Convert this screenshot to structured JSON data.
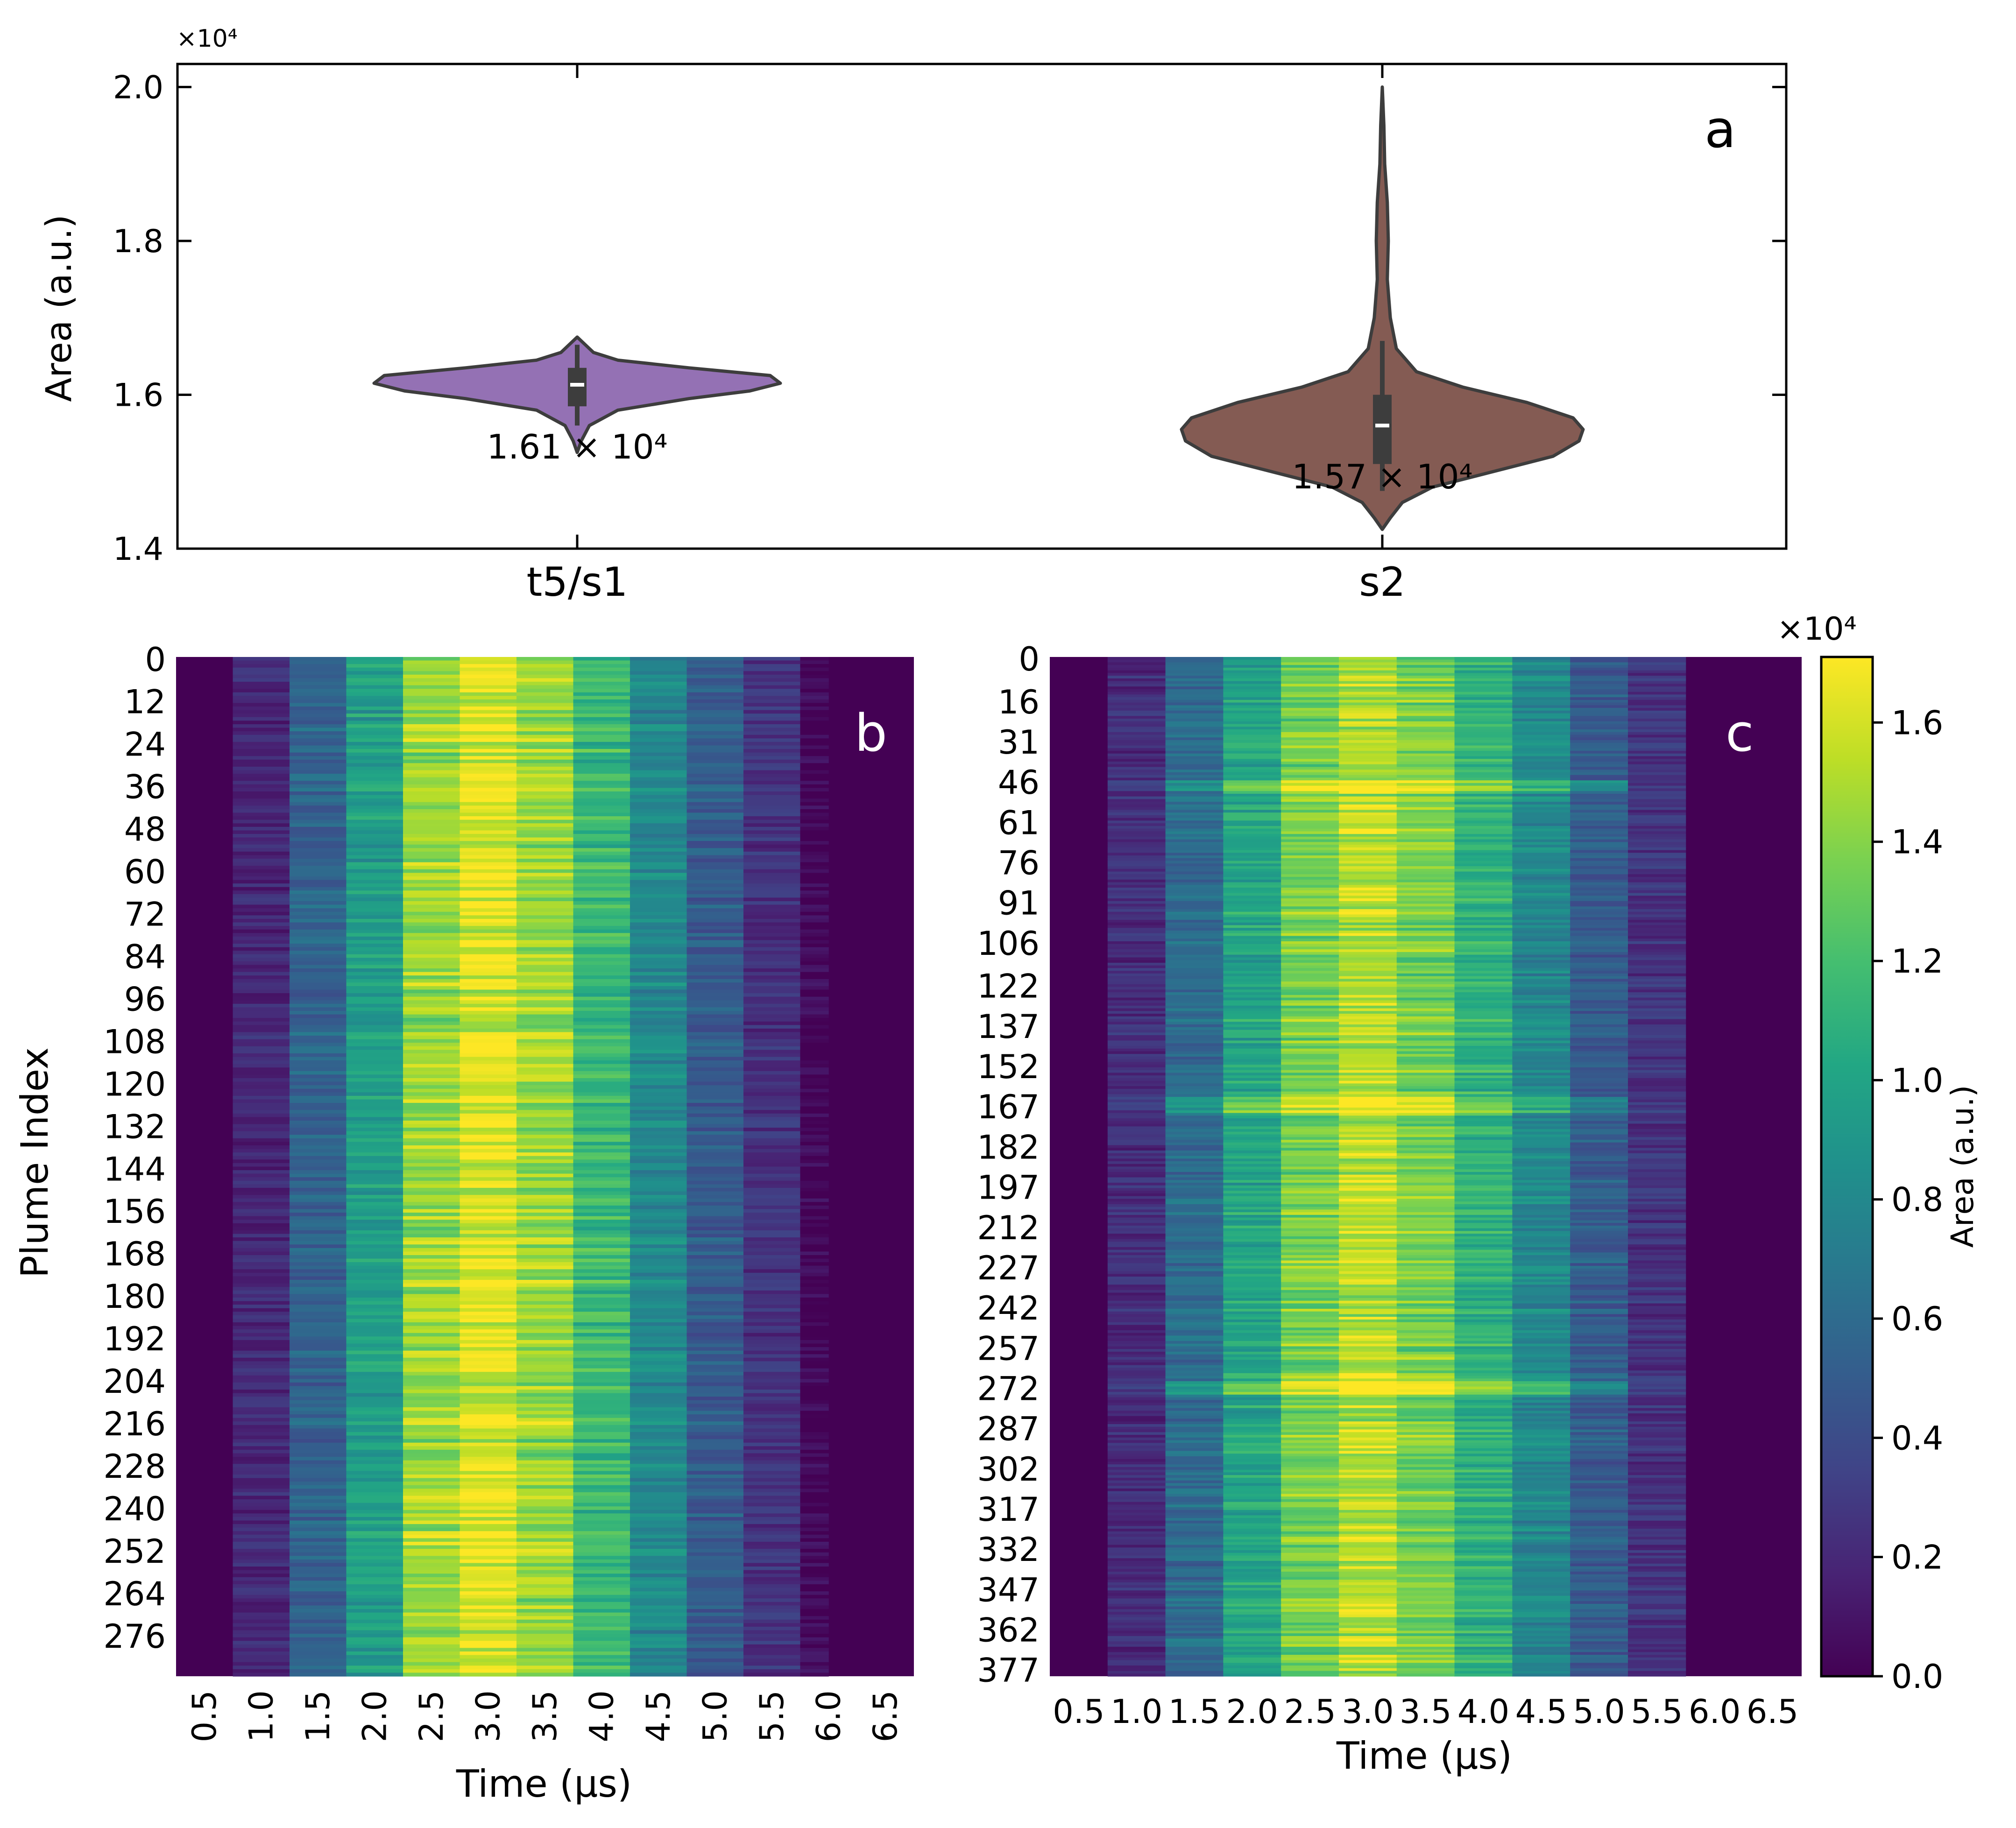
{
  "chart_data": [
    {
      "panel": "a",
      "type": "violin",
      "panel_label": "a",
      "ylabel": "Area (a.u.)",
      "y_scale_label": "×10⁴",
      "ylim": [
        1.4,
        2.03
      ],
      "y_ticks": [
        "1.4",
        "1.6",
        "1.8",
        "2.0"
      ],
      "y_tick_values": [
        1.4,
        1.6,
        1.8,
        2.0
      ],
      "categories": [
        "t5/s1",
        "s2"
      ],
      "colors": [
        "#9471b4",
        "#845b53"
      ],
      "violins": [
        {
          "name": "t5/s1",
          "range": [
            1.525,
            1.675
          ],
          "median": 1.613,
          "q1": 1.585,
          "q3": 1.635,
          "whisker_low": 1.56,
          "whisker_high": 1.665,
          "annotation": "1.61 × 10⁴",
          "density": [
            [
              1.525,
              0.0
            ],
            [
              1.54,
              0.02
            ],
            [
              1.56,
              0.06
            ],
            [
              1.58,
              0.2
            ],
            [
              1.595,
              0.55
            ],
            [
              1.605,
              0.85
            ],
            [
              1.615,
              1.0
            ],
            [
              1.625,
              0.95
            ],
            [
              1.635,
              0.55
            ],
            [
              1.645,
              0.2
            ],
            [
              1.655,
              0.08
            ],
            [
              1.665,
              0.04
            ],
            [
              1.675,
              0.0
            ]
          ]
        },
        {
          "name": "s2",
          "range": [
            1.425,
            2.0
          ],
          "median": 1.56,
          "q1": 1.51,
          "q3": 1.6,
          "whisker_low": 1.475,
          "whisker_high": 1.67,
          "annotation": "1.57 × 10⁴",
          "density": [
            [
              1.425,
              0.0
            ],
            [
              1.44,
              0.04
            ],
            [
              1.46,
              0.1
            ],
            [
              1.48,
              0.25
            ],
            [
              1.5,
              0.55
            ],
            [
              1.52,
              0.85
            ],
            [
              1.54,
              0.98
            ],
            [
              1.555,
              1.0
            ],
            [
              1.57,
              0.95
            ],
            [
              1.59,
              0.72
            ],
            [
              1.61,
              0.4
            ],
            [
              1.63,
              0.17
            ],
            [
              1.66,
              0.07
            ],
            [
              1.7,
              0.04
            ],
            [
              1.75,
              0.025
            ],
            [
              1.8,
              0.03
            ],
            [
              1.85,
              0.025
            ],
            [
              1.9,
              0.012
            ],
            [
              1.95,
              0.008
            ],
            [
              2.0,
              0.0
            ]
          ]
        }
      ]
    },
    {
      "panel": "b",
      "type": "heatmap",
      "panel_label": "b",
      "ylabel": "Plume Index",
      "xlabel": "Time (μs)",
      "x_ticks": [
        "0.5",
        "1.0",
        "1.5",
        "2.0",
        "2.5",
        "3.0",
        "3.5",
        "4.0",
        "4.5",
        "5.0",
        "5.5",
        "6.0",
        "6.5"
      ],
      "y_ticks": [
        "0",
        "12",
        "24",
        "36",
        "48",
        "60",
        "72",
        "84",
        "96",
        "108",
        "120",
        "132",
        "144",
        "156",
        "168",
        "180",
        "192",
        "204",
        "216",
        "228",
        "240",
        "252",
        "264",
        "276"
      ],
      "rows": 288,
      "column_means": [
        0.0,
        0.2,
        0.55,
        0.95,
        1.45,
        1.62,
        1.45,
        1.15,
        0.8,
        0.5,
        0.25,
        0.02,
        0.0
      ],
      "visible_columns": 11,
      "seed": 7
    },
    {
      "panel": "c",
      "type": "heatmap",
      "panel_label": "c",
      "xlabel": "Time (μs)",
      "x_ticks": [
        "0.5",
        "1.0",
        "1.5",
        "2.0",
        "2.5",
        "3.0",
        "3.5",
        "4.0",
        "4.5",
        "5.0",
        "5.5",
        "6.0",
        "6.5"
      ],
      "y_ticks": [
        "0",
        "16",
        "31",
        "46",
        "61",
        "76",
        "91",
        "106",
        "122",
        "137",
        "152",
        "167",
        "182",
        "197",
        "212",
        "227",
        "242",
        "257",
        "272",
        "287",
        "302",
        "317",
        "332",
        "347",
        "362",
        "377"
      ],
      "rows": 380,
      "column_means": [
        0.0,
        0.22,
        0.6,
        1.0,
        1.35,
        1.52,
        1.35,
        1.1,
        0.8,
        0.5,
        0.25,
        0.0,
        0.0
      ],
      "highlight_rows": [
        46,
        47,
        48,
        49,
        164,
        165,
        166,
        167,
        168,
        169,
        270,
        271,
        272,
        273,
        274
      ],
      "seed": 11
    },
    {
      "panel": "colorbar",
      "type": "colorbar",
      "label": "Area (a.u.)",
      "scale_label": "×10⁴",
      "ticks": [
        "0.0",
        "0.2",
        "0.4",
        "0.6",
        "0.8",
        "1.0",
        "1.2",
        "1.4",
        "1.6"
      ],
      "tick_values": [
        0.0,
        0.2,
        0.4,
        0.6,
        0.8,
        1.0,
        1.2,
        1.4,
        1.6
      ],
      "range": [
        0.0,
        1.71
      ],
      "colormap": "viridis"
    }
  ]
}
